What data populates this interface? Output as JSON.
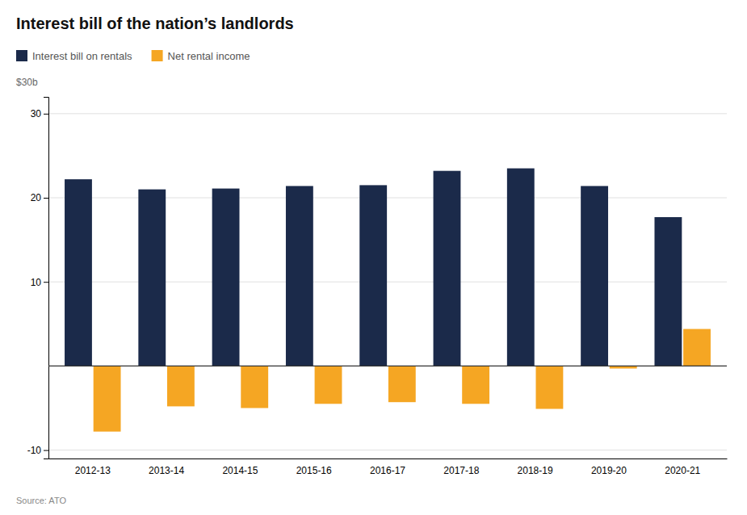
{
  "chart_data": {
    "type": "bar",
    "title": "Interest bill of the nation’s landlords",
    "y_label": "$30b",
    "source": "Source: ATO",
    "categories": [
      "2012-13",
      "2013-14",
      "2014-15",
      "2015-16",
      "2016-17",
      "2017-18",
      "2018-19",
      "2019-20",
      "2020-21"
    ],
    "series": [
      {
        "name": "Interest bill on rentals",
        "color": "#1b2a4a",
        "values": [
          22.2,
          21.0,
          21.1,
          21.4,
          21.5,
          23.2,
          23.5,
          21.4,
          17.7
        ]
      },
      {
        "name": "Net rental income",
        "color": "#f5a623",
        "values": [
          -7.8,
          -4.8,
          -5.0,
          -4.5,
          -4.3,
          -4.5,
          -5.1,
          -0.3,
          4.4
        ]
      }
    ],
    "ylim": [
      -11,
      32
    ],
    "yticks": [
      -10,
      10,
      20,
      30
    ],
    "grid": true,
    "legend": "top-left"
  }
}
